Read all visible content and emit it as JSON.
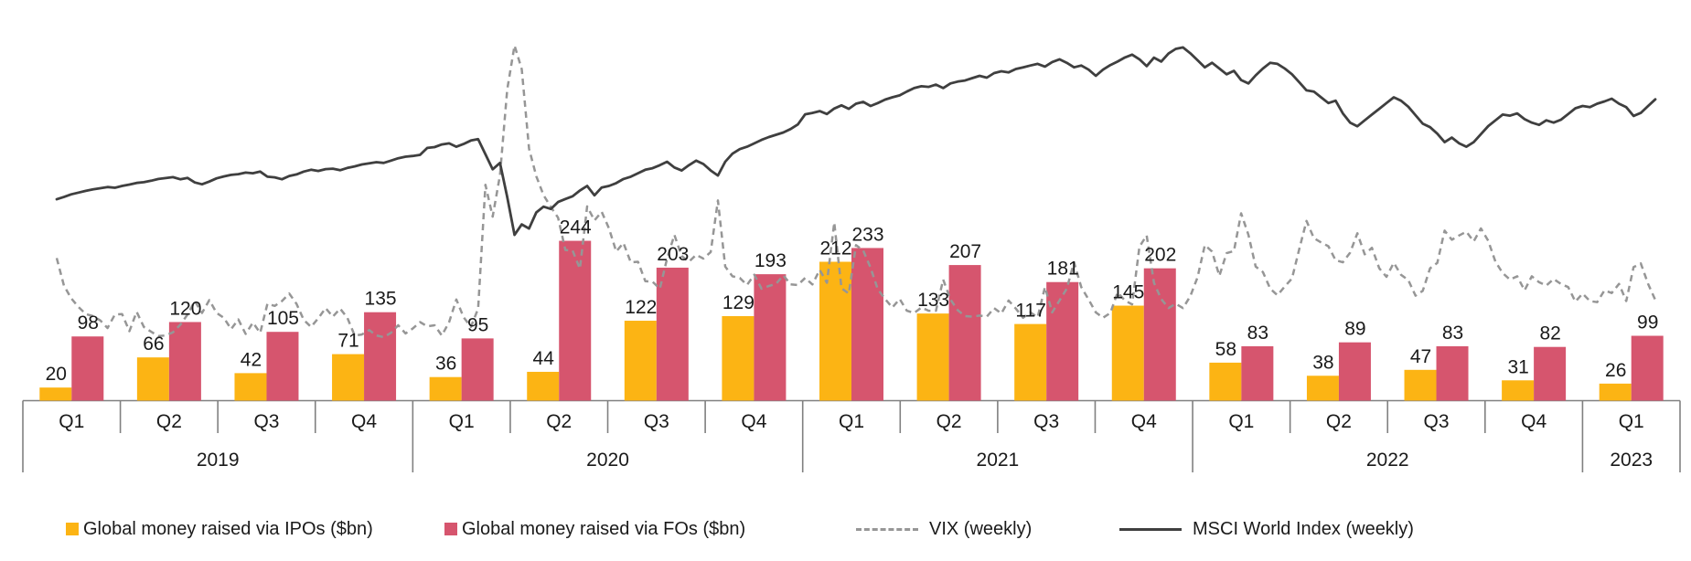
{
  "chart_data": {
    "type": "combo",
    "title": "",
    "grid": false,
    "legend_position": "bottom",
    "years": [
      {
        "label": "2019",
        "quarters": [
          "Q1",
          "Q2",
          "Q3",
          "Q4"
        ]
      },
      {
        "label": "2020",
        "quarters": [
          "Q1",
          "Q2",
          "Q3",
          "Q4"
        ]
      },
      {
        "label": "2021",
        "quarters": [
          "Q1",
          "Q2",
          "Q3",
          "Q4"
        ]
      },
      {
        "label": "2022",
        "quarters": [
          "Q1",
          "Q2",
          "Q3",
          "Q4"
        ]
      },
      {
        "label": "2023",
        "quarters": [
          "Q1"
        ]
      }
    ],
    "series": [
      {
        "name": "Global money raised via IPOs ($bn)",
        "type": "bar",
        "color": "#FCB414",
        "values": [
          20,
          66,
          42,
          71,
          36,
          44,
          122,
          129,
          212,
          133,
          117,
          145,
          58,
          38,
          47,
          31,
          26
        ]
      },
      {
        "name": "Global money raised via FOs ($bn)",
        "type": "bar",
        "color": "#D6556E",
        "values": [
          98,
          120,
          105,
          135,
          95,
          244,
          203,
          193,
          233,
          207,
          181,
          202,
          83,
          89,
          83,
          82,
          99
        ]
      },
      {
        "name": "VIX (weekly)",
        "type": "line",
        "style": "dashed",
        "color": "#969696",
        "values": [
          26.5,
          21.4,
          19.0,
          17.4,
          16.1,
          15.7,
          14.9,
          13.5,
          16.0,
          16.1,
          12.9,
          16.5,
          13.7,
          12.8,
          12.0,
          12.1,
          12.7,
          14.1,
          16.0,
          18.5,
          16.3,
          18.7,
          16.3,
          15.4,
          13.3,
          15.1,
          12.4,
          14.5,
          12.6,
          18.0,
          17.6,
          18.5,
          19.9,
          18.0,
          15.0,
          13.7,
          15.3,
          17.2,
          15.6,
          17.1,
          15.4,
          12.1,
          12.3,
          13.1,
          12.1,
          11.8,
          12.6,
          14.0,
          12.5,
          13.4,
          14.6,
          13.8,
          14.0,
          12.1,
          14.6,
          18.8,
          15.5,
          13.7,
          17.1,
          40.1,
          34.2,
          41.9,
          57.8,
          66.0,
          61.6,
          46.8,
          41.7,
          38.2,
          36.0,
          34.0,
          28.0,
          27.9,
          24.5,
          36.1,
          33.5,
          35.1,
          32.0,
          27.7,
          29.3,
          25.7,
          25.8,
          22.2,
          22.1,
          20.8,
          26.4,
          30.8,
          26.9,
          25.8,
          27.1,
          26.4,
          27.6,
          37.2,
          24.9,
          23.1,
          22.8,
          21.5,
          23.4,
          20.8,
          21.3,
          21.7,
          23.3,
          21.6,
          21.5,
          22.8,
          21.6,
          24.3,
          21.9,
          33.1,
          20.9,
          19.9,
          28.9,
          27.9,
          24.7,
          20.7,
          18.9,
          17.3,
          18.9,
          16.7,
          16.3,
          17.3,
          16.7,
          16.7,
          22.5,
          18.8,
          16.8,
          15.7,
          15.6,
          15.8,
          15.6,
          17.2,
          16.2,
          18.6,
          17.1,
          15.4,
          16.4,
          15.5,
          21.1,
          16.4,
          18.6,
          20.8,
          25.7,
          21.1,
          18.8,
          16.4,
          15.4,
          16.3,
          20.1,
          18.6,
          17.9,
          28.6,
          30.7,
          21.9,
          18.9,
          17.2,
          18.0,
          17.2,
          19.4,
          22.9,
          28.9,
          27.7,
          23.2,
          27.4,
          27.8,
          34.8,
          30.8,
          24.9,
          23.9,
          20.8,
          19.6,
          21.2,
          22.7,
          28.2,
          33.4,
          30.2,
          29.4,
          28.7,
          26.1,
          25.7,
          27.5,
          31.1,
          27.2,
          28.4,
          24.6,
          23.0,
          25.6,
          23.4,
          22.4,
          19.5,
          20.4,
          24.6,
          25.6,
          31.6,
          29.9,
          30.7,
          31.4,
          29.6,
          32.0,
          29.7,
          25.8,
          23.7,
          22.5,
          23.1,
          20.5,
          23.1,
          22.0,
          21.4,
          22.6,
          21.7,
          21.1,
          18.4,
          19.9,
          18.5,
          18.3,
          20.5,
          20.0,
          21.7,
          18.5,
          24.8,
          25.5,
          21.7,
          18.7
        ]
      },
      {
        "name": "MSCI World Index (weekly)",
        "type": "line",
        "style": "solid",
        "color": "#3F3F3F",
        "values": [
          1912,
          1932,
          1955,
          1970,
          1985,
          1998,
          2008,
          2018,
          2012,
          2028,
          2040,
          2054,
          2060,
          2073,
          2088,
          2096,
          2104,
          2086,
          2098,
          2058,
          2042,
          2066,
          2094,
          2110,
          2124,
          2130,
          2144,
          2138,
          2152,
          2108,
          2102,
          2086,
          2114,
          2128,
          2152,
          2168,
          2158,
          2174,
          2178,
          2164,
          2184,
          2198,
          2214,
          2224,
          2234,
          2228,
          2248,
          2268,
          2282,
          2288,
          2298,
          2358,
          2365,
          2388,
          2398,
          2368,
          2392,
          2422,
          2434,
          2302,
          2172,
          2228,
          1932,
          1602,
          1694,
          1658,
          1798,
          1848,
          1828,
          1888,
          1914,
          1938,
          1988,
          2028,
          1946,
          2014,
          2028,
          2052,
          2088,
          2108,
          2138,
          2168,
          2182,
          2208,
          2238,
          2188,
          2162,
          2208,
          2248,
          2218,
          2162,
          2118,
          2238,
          2308,
          2348,
          2368,
          2398,
          2428,
          2452,
          2472,
          2492,
          2522,
          2562,
          2650,
          2662,
          2678,
          2652,
          2700,
          2728,
          2698,
          2742,
          2758,
          2722,
          2748,
          2778,
          2798,
          2814,
          2848,
          2878,
          2894,
          2888,
          2908,
          2878,
          2918,
          2934,
          2944,
          2964,
          2984,
          2968,
          3008,
          3024,
          3014,
          3044,
          3058,
          3074,
          3088,
          3064,
          3104,
          3128,
          3098,
          3058,
          3074,
          3038,
          2984,
          3038,
          3078,
          3108,
          3144,
          3168,
          3128,
          3068,
          3142,
          3108,
          3178,
          3218,
          3231,
          3180,
          3120,
          3058,
          3098,
          3048,
          2998,
          3028,
          2948,
          2918,
          2988,
          3048,
          3098,
          3088,
          3048,
          2998,
          2928,
          2858,
          2848,
          2798,
          2748,
          2768,
          2658,
          2578,
          2546,
          2598,
          2648,
          2698,
          2748,
          2798,
          2768,
          2716,
          2642,
          2568,
          2538,
          2482,
          2408,
          2448,
          2398,
          2368,
          2408,
          2478,
          2548,
          2598,
          2648,
          2638,
          2658,
          2608,
          2578,
          2558,
          2598,
          2578,
          2602,
          2652,
          2702,
          2722,
          2712,
          2742,
          2762,
          2786,
          2742,
          2712,
          2636,
          2662,
          2722,
          2780
        ]
      }
    ],
    "axis": {
      "color": "#808080",
      "label_color": "#1a1a1a"
    }
  }
}
